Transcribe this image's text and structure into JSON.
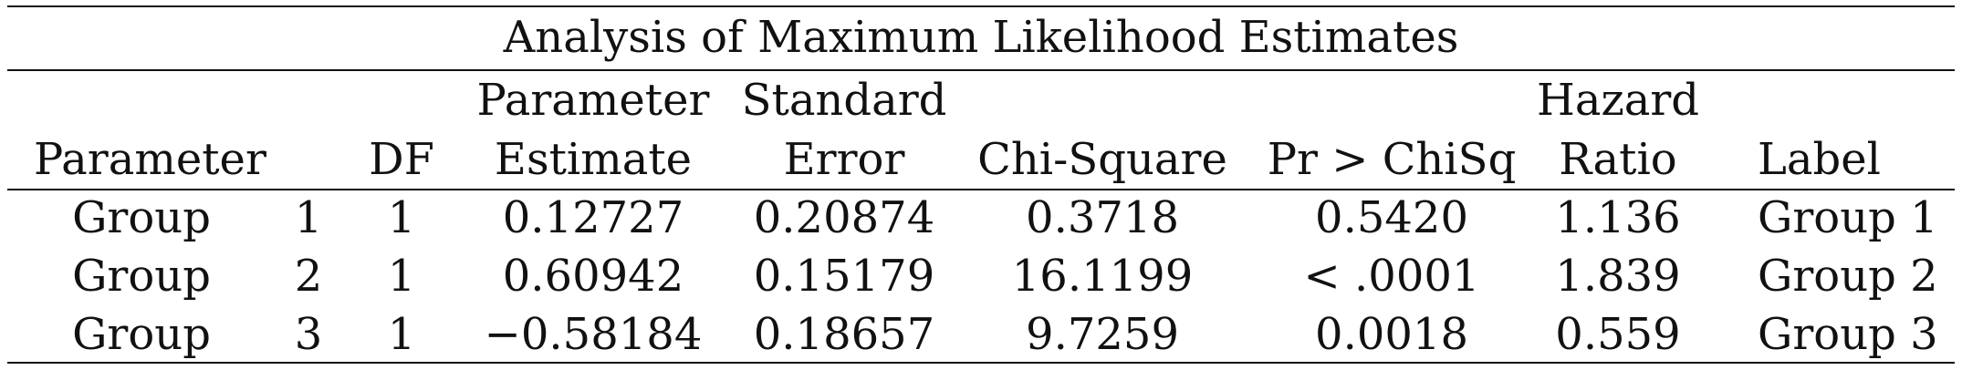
{
  "table": {
    "title": "Analysis of Maximum Likelihood Estimates",
    "headers": {
      "parameter": "Parameter",
      "df": "DF",
      "param_estimate_line1": "Parameter",
      "param_estimate_line2": "Estimate",
      "std_error_line1": "Standard",
      "std_error_line2": "Error",
      "chi_square": "Chi-Square",
      "pr_chisq": "Pr > ChiSq",
      "hazard_ratio_line1": "Hazard",
      "hazard_ratio_line2": "Ratio",
      "label": "Label"
    },
    "rows": [
      {
        "parameter": "Group",
        "level": "1",
        "df": "1",
        "estimate": "0.12727",
        "std_error": "0.20874",
        "chi_square": "0.3718",
        "pr_chisq": "0.5420",
        "hazard_ratio": "1.136",
        "label": "Group 1"
      },
      {
        "parameter": "Group",
        "level": "2",
        "df": "1",
        "estimate": "0.60942",
        "std_error": "0.15179",
        "chi_square": "16.1199",
        "pr_chisq": "< .0001",
        "hazard_ratio": "1.839",
        "label": "Group 2"
      },
      {
        "parameter": "Group",
        "level": "3",
        "df": "1",
        "estimate": "−0.58184",
        "std_error": "0.18657",
        "chi_square": "9.7259",
        "pr_chisq": "0.0018",
        "hazard_ratio": "0.559",
        "label": "Group 3"
      }
    ]
  }
}
